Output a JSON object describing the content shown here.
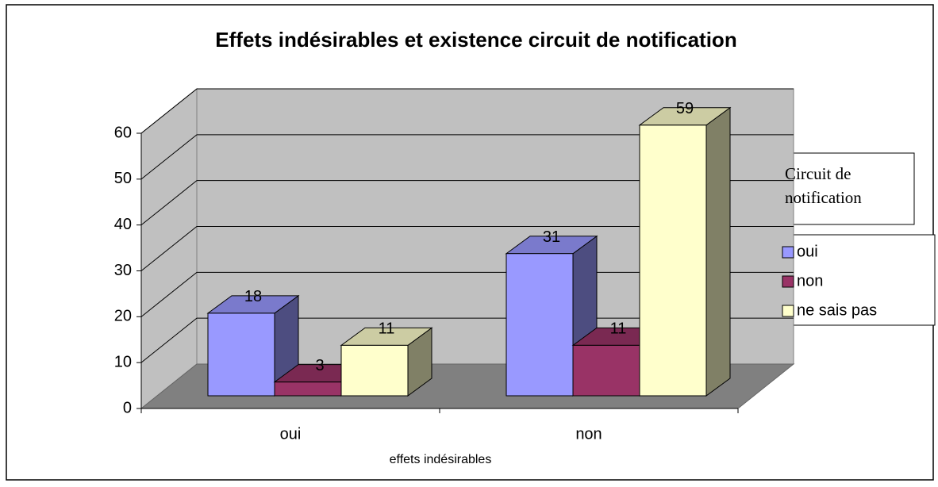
{
  "chart_data": {
    "type": "bar3d",
    "title": "Effets indésirables et existence circuit de notification",
    "x_label": "effets indésirables",
    "legend_title": "Circuit de notification",
    "categories": [
      "oui",
      "non"
    ],
    "series": [
      {
        "name": "oui",
        "color": "#9999ff",
        "values": [
          18,
          31
        ]
      },
      {
        "name": "non",
        "color": "#993366",
        "values": [
          3,
          11
        ]
      },
      {
        "name": "ne sais pas",
        "color": "#ffffcc",
        "values": [
          11,
          59
        ]
      }
    ],
    "ylim": [
      0,
      60
    ],
    "yticks": [
      0,
      10,
      20,
      30,
      40,
      50,
      60
    ],
    "grid": true,
    "legend": "right"
  }
}
